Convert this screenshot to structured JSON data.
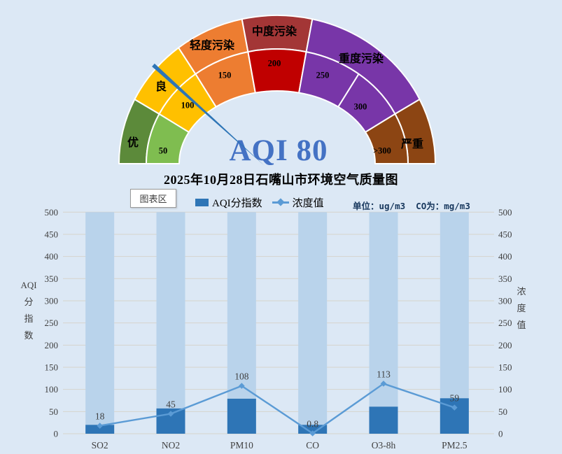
{
  "page_background": "#DCE8F5",
  "title": "2025年10月28日石嘴山市环境空气质量图",
  "tooltip_label": "图表区",
  "units_label": "单位：ug/m3  CO为：mg/m3",
  "legend": {
    "bar_label": "AQI分指数",
    "line_label": "浓度值",
    "bar_color": "#2E75B6",
    "line_color": "#5B9BD5"
  },
  "gauge": {
    "value": 80,
    "value_text": "AQI 80",
    "value_color": "#4472C4",
    "needle_color": "#2E75B6",
    "units_per_segment": 50,
    "outer_segments": [
      {
        "label": "优",
        "color": "#5C8A3A",
        "span": 1
      },
      {
        "label": "良",
        "color": "#FFC000",
        "span": 1
      },
      {
        "label": "轻度污染",
        "color": "#ED7D31",
        "span": 1
      },
      {
        "label": "中度污染",
        "color": "#A33636",
        "span": 1
      },
      {
        "label": "重度污染",
        "color": "#7836A8",
        "span": 2
      },
      {
        "label": "严重",
        "color": "#8C4513",
        "span": 1
      }
    ],
    "inner_segments": [
      {
        "label": "50",
        "color": "#7FBD50"
      },
      {
        "label": "100",
        "color": "#FFC000"
      },
      {
        "label": "150",
        "color": "#ED7D31"
      },
      {
        "label": "200",
        "color": "#C00000"
      },
      {
        "label": "250",
        "color": "#7836A8"
      },
      {
        "label": "300",
        "color": "#7836A8"
      },
      {
        "label": ">300",
        "color": "#8C4513"
      }
    ]
  },
  "chart_data": {
    "type": "bar+line combo",
    "categories": [
      "SO2",
      "NO2",
      "PM10",
      "CO",
      "O3-8h",
      "PM2.5"
    ],
    "series": [
      {
        "name": "AQI分指数",
        "type": "bar",
        "color": "#2E75B6",
        "values": [
          20,
          57,
          79,
          20,
          61,
          80
        ]
      },
      {
        "name": "浓度值",
        "type": "line",
        "color": "#5B9BD5",
        "values": [
          18,
          45,
          108,
          0.8,
          113,
          59
        ],
        "data_labels": [
          "18",
          "45",
          "108",
          "0.8",
          "113",
          "59"
        ]
      }
    ],
    "background_bars": {
      "color": "#B9D3EB",
      "value": 500
    },
    "left_axis": {
      "title": "AQI分指数",
      "title_lines": [
        "AQI",
        "分",
        "指",
        "数"
      ],
      "min": 0,
      "max": 500,
      "step": 50
    },
    "right_axis": {
      "title": "浓度值",
      "title_lines": [
        "浓",
        "度",
        "值"
      ],
      "min": 0,
      "max": 500,
      "step": 50
    },
    "gridline_color": "#D6D3CC",
    "tick_color": "#3F3F3F",
    "legend_position": "top-center",
    "grid": true
  }
}
